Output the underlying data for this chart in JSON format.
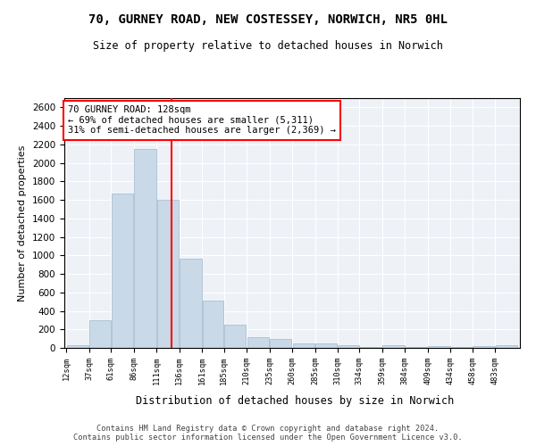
{
  "title_line1": "70, GURNEY ROAD, NEW COSTESSEY, NORWICH, NR5 0HL",
  "title_line2": "Size of property relative to detached houses in Norwich",
  "xlabel": "Distribution of detached houses by size in Norwich",
  "ylabel": "Number of detached properties",
  "bar_color": "#c9d9e8",
  "bar_edgecolor": "#a0b8cc",
  "vline_color": "red",
  "vline_x": 128,
  "annotation_text": "70 GURNEY ROAD: 128sqm\n← 69% of detached houses are smaller (5,311)\n31% of semi-detached houses are larger (2,369) →",
  "annotation_box_edgecolor": "red",
  "footer_text": "Contains HM Land Registry data © Crown copyright and database right 2024.\nContains public sector information licensed under the Open Government Licence v3.0.",
  "bin_edges": [
    12,
    37,
    61,
    86,
    111,
    136,
    161,
    185,
    210,
    235,
    260,
    285,
    310,
    334,
    359,
    384,
    409,
    434,
    458,
    483,
    508
  ],
  "bar_heights": [
    25,
    300,
    1670,
    2150,
    1600,
    960,
    510,
    250,
    120,
    100,
    50,
    50,
    30,
    5,
    30,
    5,
    20,
    5,
    20,
    25
  ],
  "ylim": [
    0,
    2700
  ],
  "yticks": [
    0,
    200,
    400,
    600,
    800,
    1000,
    1200,
    1400,
    1600,
    1800,
    2000,
    2200,
    2400,
    2600
  ],
  "background_color": "#eef2f7",
  "grid_color": "#ffffff"
}
